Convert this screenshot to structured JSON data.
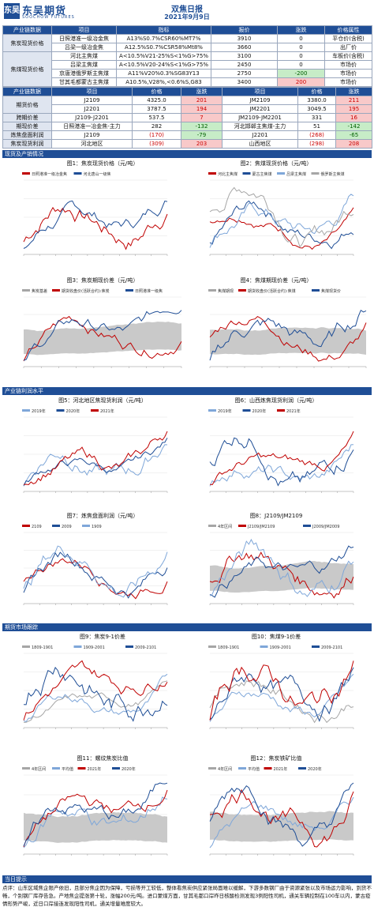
{
  "header": {
    "logo_mark": "东吴",
    "logo_name": "东吴期货",
    "logo_sub": "SOOCHOW FUTURES",
    "title": "双焦日报",
    "date": "2021年9月9日"
  },
  "t1": {
    "head": [
      "产业链数据",
      "项目",
      "指标",
      "报价",
      "涨跌",
      "价格属性"
    ],
    "rows": [
      {
        "cat": "焦炭现货价格",
        "item": "日照港准一级冶金焦",
        "spec": "A13%S0.7%CSR60%MT7%",
        "price": "3910",
        "chg": "0",
        "attr": "平仓价(含税)"
      },
      {
        "item": "吕梁一级冶金焦",
        "spec": "A12.5%S0.7%CSR58%Mt8%",
        "price": "3660",
        "chg": "0",
        "attr": "出厂价"
      },
      {
        "cat": "焦煤现货价格",
        "item": "河北主焦煤",
        "spec": "A<10.5%V21-25%S<1%G>75%",
        "price": "3100",
        "chg": "0",
        "attr": "车板价(含税)"
      },
      {
        "item": "吕梁主焦煤",
        "spec": "A<10.5%V20-24%S<1%G>75%",
        "price": "2450",
        "chg": "0",
        "attr": "市场价"
      },
      {
        "item": "京唐港俄罗斯主焦煤",
        "spec": "A11%V20%0.3%SG83Y13",
        "price": "2750",
        "chg": "-200",
        "attr": "市场价"
      },
      {
        "item": "甘其毛都蒙古主焦煤",
        "spec": "A10.5%,V28%,<0.6%S,G83",
        "price": "3400",
        "chg": "200",
        "attr": "市场价"
      }
    ]
  },
  "t2": {
    "head": [
      "产业链数据",
      "项目",
      "价格",
      "涨跌",
      "项目",
      "价格",
      "涨跌"
    ],
    "rows": [
      {
        "cat": "期货价格",
        "a": "J2109",
        "ap": "4325.0",
        "ac": "201",
        "b": "JM2109",
        "bp": "3380.0",
        "bc": "211"
      },
      {
        "a": "J2201",
        "ap": "3787.5",
        "ac": "194",
        "b": "JM2201",
        "bp": "3049.5",
        "bc": "195"
      },
      {
        "cat": "跨期价差",
        "a": "J2109-J2201",
        "ap": "537.5",
        "ac": "7",
        "b": "JM2109-JM2201",
        "bp": "331",
        "bc": "16"
      },
      {
        "cat": "期现价差",
        "a": "日照港准一冶金焦-主力",
        "ap": "282",
        "ac": "-132",
        "b": "河北邯郸主焦煤-主力",
        "bp": "51",
        "bc": "-142"
      },
      {
        "cat": "炼焦盘面利润",
        "a": "J2109",
        "ap": "(170)",
        "ac": "-79",
        "b": "J2201",
        "bp": "(268)",
        "bc": "-65"
      },
      {
        "cat": "焦炭现货利润",
        "a": "河北地区",
        "ap": "(309)",
        "ac": "203",
        "b": "山西地区",
        "bp": "(298)",
        "bc": "208"
      }
    ]
  },
  "sections": [
    "现货及产销情况",
    "产业链利润水平",
    "期货市场跟踪",
    "当日提示"
  ],
  "charts": {
    "c1": {
      "title": "图1：焦炭现货价格（元/吨）",
      "legend": [
        "日照港准一级冶金焦",
        "河北唐山一级焦"
      ],
      "colors": [
        "#c00000",
        "#1f4e96"
      ]
    },
    "c2": {
      "title": "图2：焦煤现货价格（元/吨）",
      "legend": [
        "河北主焦煤",
        "蒙古主焦煤",
        "吕梁主焦煤",
        "俄罗斯主焦煤"
      ],
      "colors": [
        "#c00000",
        "#1f4e96",
        "#7fa7d9",
        "#a6a6a6"
      ]
    },
    "c3": {
      "title": "图3：焦炭期现价差（元/吨）",
      "legend": [
        "焦炭基差",
        "期货收盘价(活跃合约):焦炭",
        "日照港准一级焦"
      ],
      "colors": [
        "#a6a6a6",
        "#c00000",
        "#1f4e96"
      ]
    },
    "c4": {
      "title": "图4：焦煤期现价差（元/吨）",
      "legend": [
        "焦煤期现",
        "期货收盘价(活跃合约):焦煤",
        "焦煤现货价"
      ],
      "colors": [
        "#a6a6a6",
        "#c00000",
        "#1f4e96"
      ]
    },
    "c5": {
      "title": "图5：河北地区焦现货利润（元/吨）",
      "legend": [
        "2019年",
        "2020年",
        "2021年"
      ],
      "colors": [
        "#7fa7d9",
        "#1f4e96",
        "#c00000"
      ]
    },
    "c6": {
      "title": "图6：山西炼焦现货利润（元/吨）",
      "legend": [
        "2019年",
        "2020年",
        "2021年"
      ],
      "colors": [
        "#7fa7d9",
        "#1f4e96",
        "#c00000"
      ]
    },
    "c7": {
      "title": "图7：炼焦盘面利润（元/吨）",
      "legend": [
        "2109",
        "2009",
        "1909"
      ],
      "colors": [
        "#c00000",
        "#1f4e96",
        "#7fa7d9"
      ]
    },
    "c8": {
      "title": "图8：J2109/JM2109",
      "legend": [
        "4年区间",
        "J2109/JM2109",
        "J2009/JM2009",
        "平均值"
      ],
      "colors": [
        "#a6a6a6",
        "#c00000",
        "#1f4e96",
        "#7fa7d9"
      ]
    },
    "c9": {
      "title": "图9：焦炭9-1价差",
      "legend": [
        "1809-1901",
        "1909-2001",
        "2009-2101",
        "2109-2201"
      ],
      "colors": [
        "#a6a6a6",
        "#7fa7d9",
        "#1f4e96",
        "#c00000"
      ]
    },
    "c10": {
      "title": "图10：焦煤9-1价差",
      "legend": [
        "1809-1901",
        "1909-2001",
        "2009-2101",
        "2109-2201"
      ],
      "colors": [
        "#a6a6a6",
        "#7fa7d9",
        "#1f4e96",
        "#c00000"
      ]
    },
    "c11": {
      "title": "图11：螺纹焦炭比值",
      "legend": [
        "4年区间",
        "平均值",
        "2021年",
        "2020年"
      ],
      "colors": [
        "#a6a6a6",
        "#7fa7d9",
        "#c00000",
        "#1f4e96"
      ]
    },
    "c12": {
      "title": "图12：焦炭铁矿比值",
      "legend": [
        "4年区间",
        "平均值",
        "2021年",
        "2020年"
      ],
      "colors": [
        "#a6a6a6",
        "#7fa7d9",
        "#c00000",
        "#1f4e96"
      ]
    }
  },
  "note": "点评：山东区域焦企限产依旧，且部分焦企因为保障，亏损等开工较低，整体看焦炭供应紧张局面难以缓解，下游多数钢厂由于资源紧张以及市场运力影响，到货不畅，个别钢厂库存告急。产地焦企提涨第十轮，涨幅200元/吨。进口蒙煤方面，甘其毛都口岸昨日核酸检测发现3例阳性司机，通关车辆控制在100车以内，蒙古疫情形势严峻，近日口岸接连发现阳性司机，通关增量难度较大。"
}
